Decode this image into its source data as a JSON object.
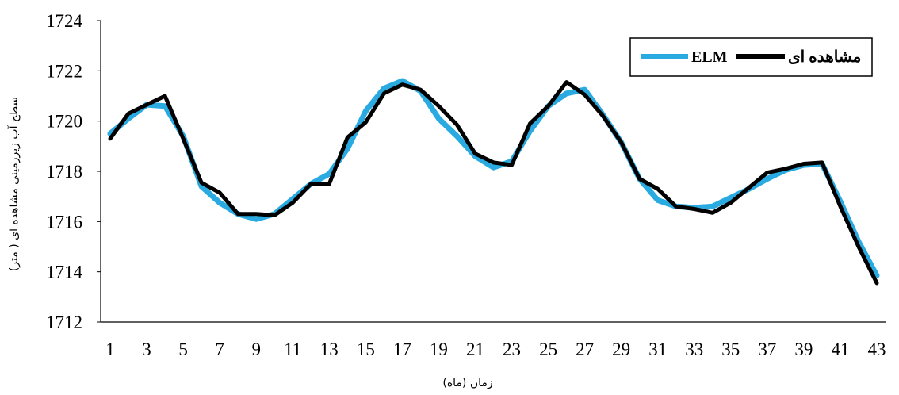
{
  "chart_data": {
    "type": "line",
    "xlabel": "زمان (ماه)",
    "ylabel": "سطح آب زیرزمینی مشاهده ای ( متر)",
    "ylim": [
      1712,
      1724
    ],
    "yticks": [
      1712,
      1714,
      1716,
      1718,
      1720,
      1722,
      1724
    ],
    "xlim": [
      1,
      43
    ],
    "xticks": [
      1,
      3,
      5,
      7,
      9,
      11,
      13,
      15,
      17,
      19,
      21,
      23,
      25,
      27,
      29,
      31,
      33,
      35,
      37,
      39,
      41,
      43
    ],
    "legend_position": "top-right",
    "grid": false,
    "series": [
      {
        "name": "ELM",
        "color": "#29abe2",
        "x": [
          1,
          2,
          3,
          4,
          5,
          6,
          7,
          8,
          9,
          10,
          11,
          12,
          13,
          14,
          15,
          16,
          17,
          18,
          19,
          20,
          21,
          22,
          23,
          24,
          25,
          26,
          27,
          28,
          29,
          30,
          31,
          32,
          33,
          34,
          35,
          36,
          37,
          38,
          39,
          40,
          41,
          42,
          43
        ],
        "values": [
          1719.5,
          1720.1,
          1720.65,
          1720.6,
          1719.4,
          1717.4,
          1716.75,
          1716.3,
          1716.1,
          1716.3,
          1716.9,
          1717.5,
          1717.9,
          1718.9,
          1720.4,
          1721.3,
          1721.6,
          1721.2,
          1720.1,
          1719.4,
          1718.6,
          1718.15,
          1718.4,
          1719.6,
          1720.6,
          1721.1,
          1721.25,
          1720.25,
          1719.15,
          1717.7,
          1716.85,
          1716.6,
          1716.55,
          1716.6,
          1716.95,
          1717.3,
          1717.7,
          1718.05,
          1718.25,
          1718.3,
          1716.8,
          1715.2,
          1713.85
        ]
      },
      {
        "name": "مشاهده ای",
        "color": "#000000",
        "x": [
          1,
          2,
          3,
          4,
          5,
          6,
          7,
          8,
          9,
          10,
          11,
          12,
          13,
          14,
          15,
          16,
          17,
          18,
          19,
          20,
          21,
          22,
          23,
          24,
          25,
          26,
          27,
          28,
          29,
          30,
          31,
          32,
          33,
          34,
          35,
          36,
          37,
          38,
          39,
          40,
          41,
          42,
          43
        ],
        "values": [
          1719.3,
          1720.3,
          1720.65,
          1721.0,
          1719.3,
          1717.55,
          1717.15,
          1716.3,
          1716.3,
          1716.25,
          1716.75,
          1717.5,
          1717.5,
          1719.35,
          1719.95,
          1721.1,
          1721.45,
          1721.25,
          1720.6,
          1719.85,
          1718.7,
          1718.35,
          1718.25,
          1719.9,
          1720.6,
          1721.55,
          1721.05,
          1720.2,
          1719.15,
          1717.7,
          1717.3,
          1716.6,
          1716.5,
          1716.35,
          1716.75,
          1717.35,
          1717.95,
          1718.1,
          1718.3,
          1718.35,
          1716.6,
          1715.0,
          1713.55
        ]
      }
    ]
  }
}
